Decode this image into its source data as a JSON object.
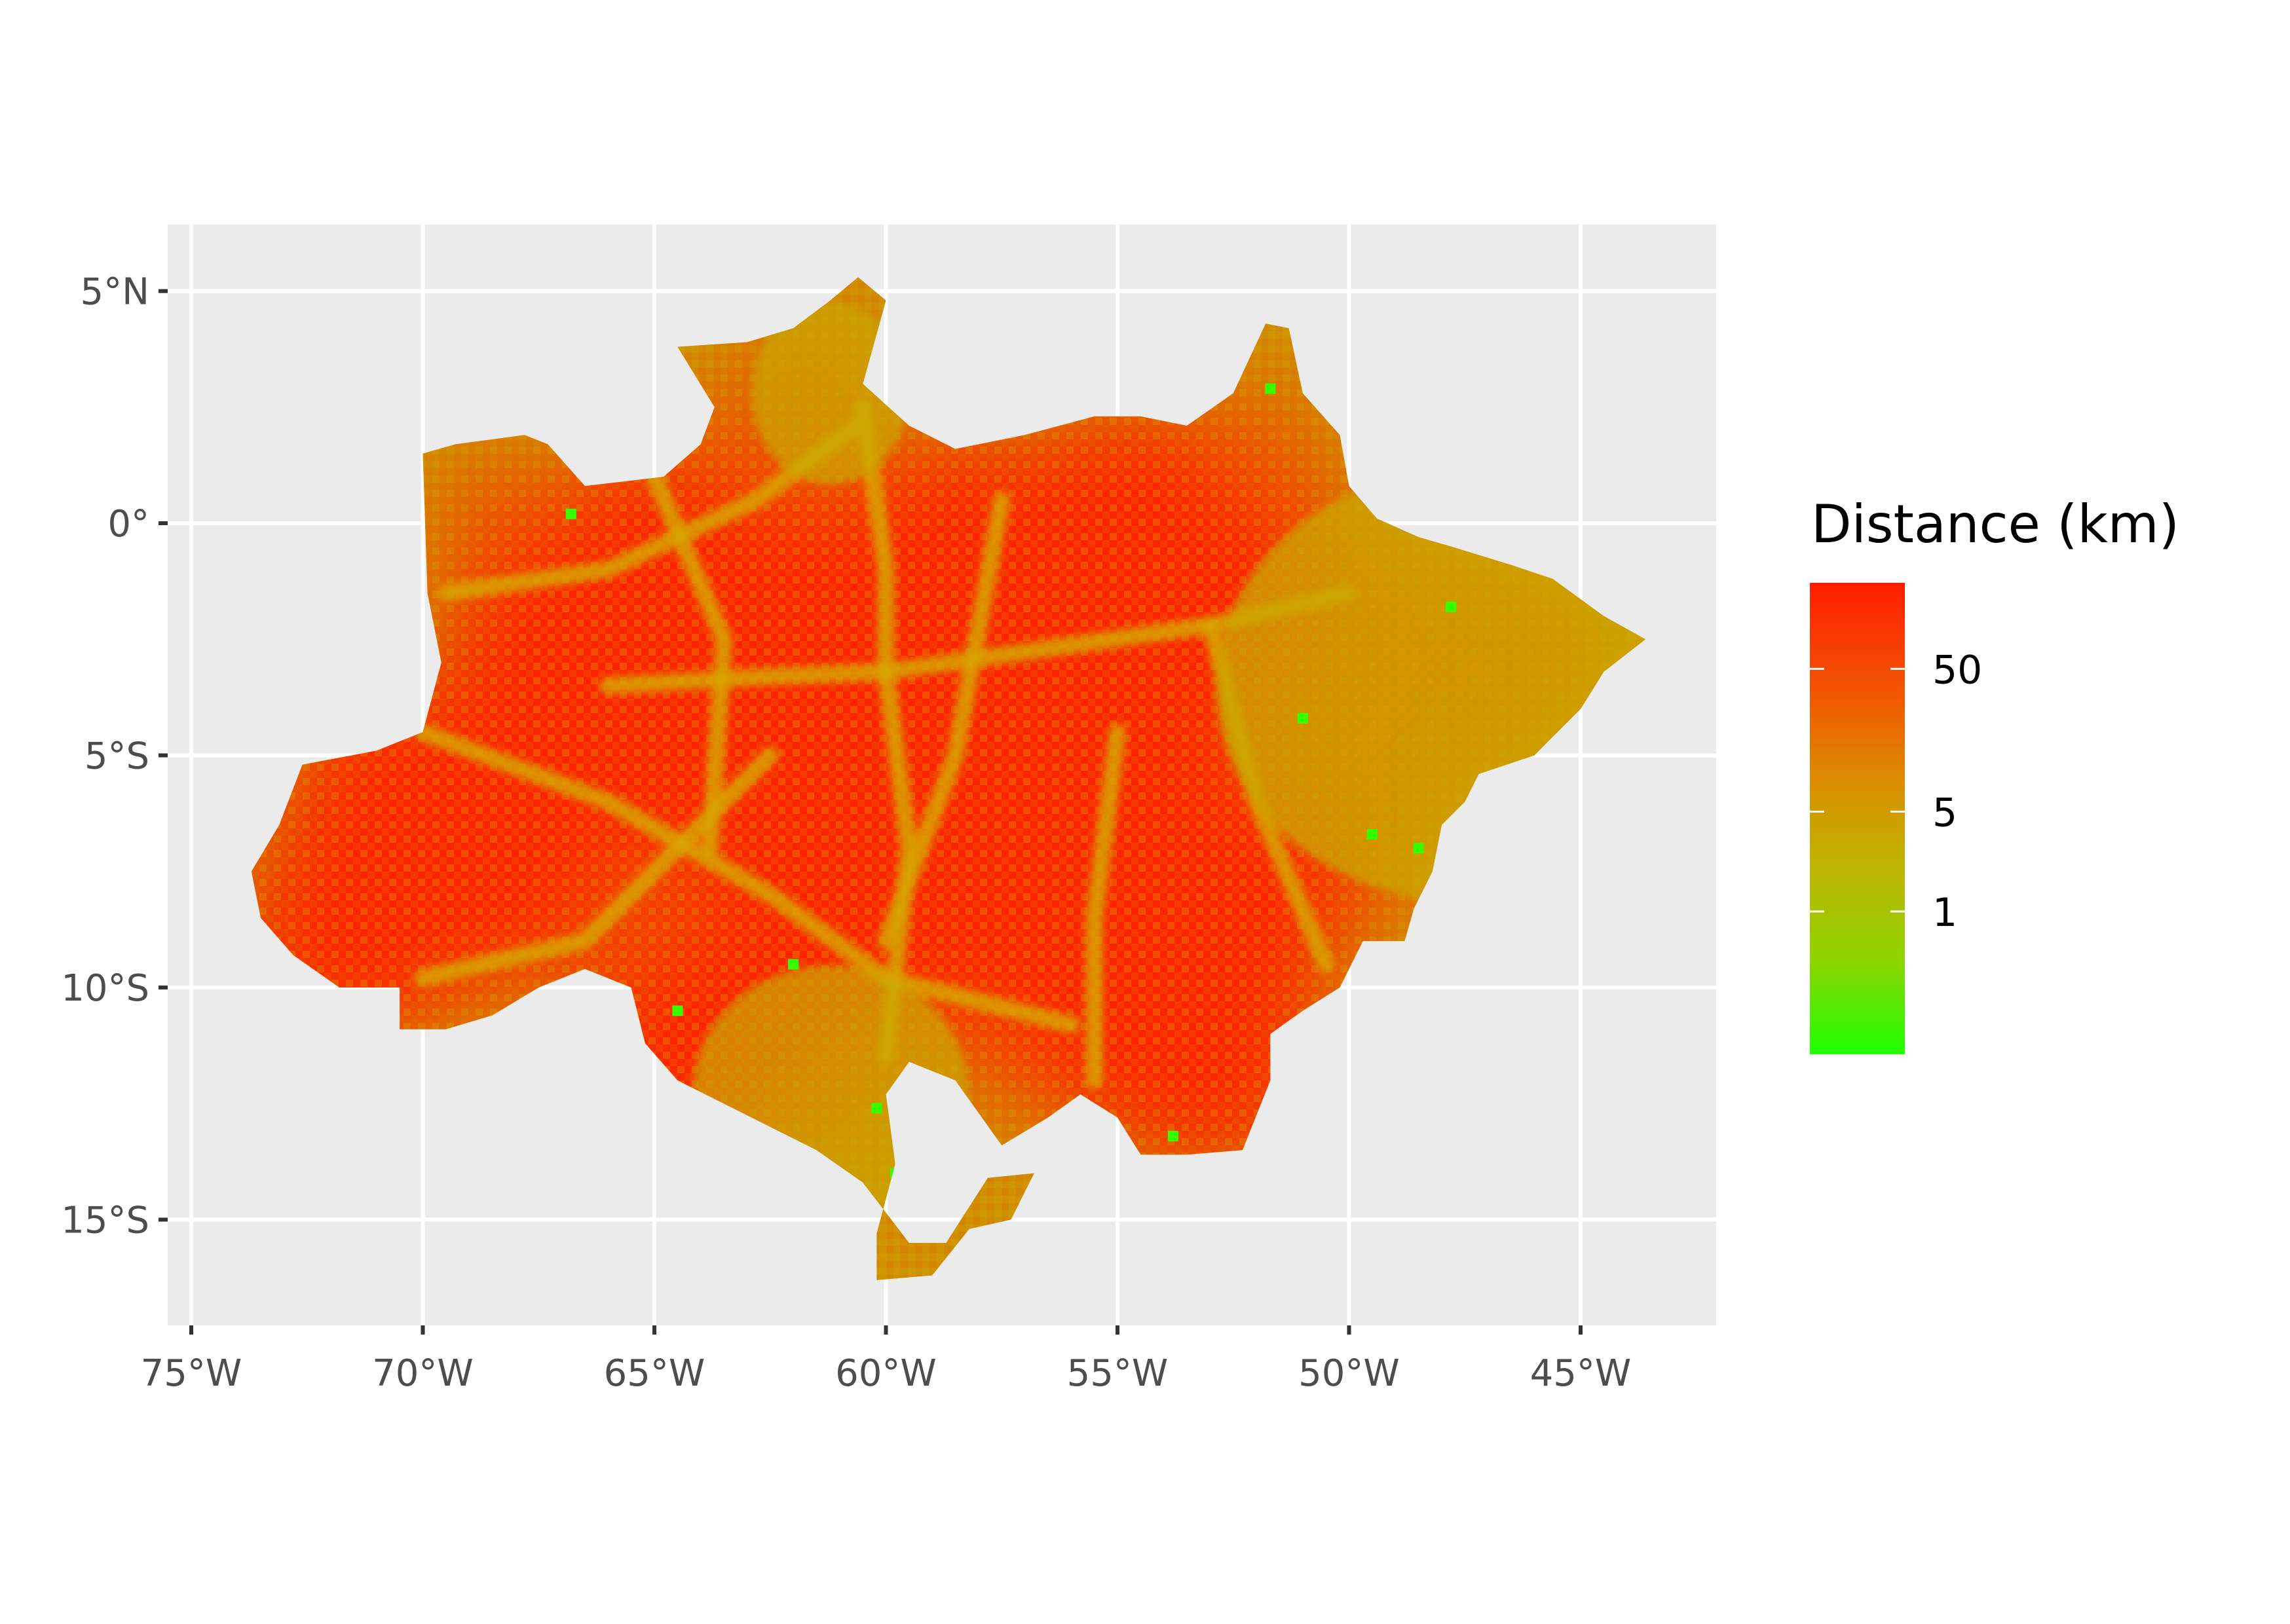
{
  "map": {
    "type": "raster",
    "x_axis": {
      "ticks": [
        -75,
        -70,
        -65,
        -60,
        -55,
        -50,
        -45
      ],
      "tick_labels": [
        "75°W",
        "70°W",
        "65°W",
        "60°W",
        "55°W",
        "50°W",
        "45°W"
      ],
      "range": [
        -75.5,
        -42.0
      ]
    },
    "y_axis": {
      "ticks": [
        5,
        0,
        -5,
        -10,
        -15
      ],
      "tick_labels": [
        "5°N",
        "0°",
        "5°S",
        "10°S",
        "15°S"
      ],
      "range": [
        -17.4,
        6.4
      ]
    },
    "grid": true,
    "region_outline_lonlat": [
      [
        -73.7,
        -7.5
      ],
      [
        -73.1,
        -6.5
      ],
      [
        -72.6,
        -5.2
      ],
      [
        -71.0,
        -4.9
      ],
      [
        -70.0,
        -4.5
      ],
      [
        -69.6,
        -3.0
      ],
      [
        -69.9,
        -1.5
      ],
      [
        -70.0,
        1.5
      ],
      [
        -69.3,
        1.7
      ],
      [
        -67.8,
        1.9
      ],
      [
        -67.3,
        1.7
      ],
      [
        -66.5,
        0.8
      ],
      [
        -64.8,
        1.0
      ],
      [
        -64.0,
        1.7
      ],
      [
        -63.7,
        2.5
      ],
      [
        -64.5,
        3.8
      ],
      [
        -63.0,
        3.9
      ],
      [
        -62.0,
        4.2
      ],
      [
        -61.2,
        4.8
      ],
      [
        -60.6,
        5.3
      ],
      [
        -60.0,
        4.8
      ],
      [
        -60.5,
        3.0
      ],
      [
        -59.5,
        2.1
      ],
      [
        -58.5,
        1.6
      ],
      [
        -57.0,
        1.9
      ],
      [
        -55.5,
        2.3
      ],
      [
        -54.5,
        2.3
      ],
      [
        -53.5,
        2.1
      ],
      [
        -52.5,
        2.8
      ],
      [
        -51.8,
        4.3
      ],
      [
        -51.3,
        4.2
      ],
      [
        -51.0,
        2.8
      ],
      [
        -50.2,
        1.9
      ],
      [
        -50.0,
        0.8
      ],
      [
        -49.4,
        0.1
      ],
      [
        -48.5,
        -0.3
      ],
      [
        -47.8,
        -0.5
      ],
      [
        -46.5,
        -0.9
      ],
      [
        -45.6,
        -1.2
      ],
      [
        -44.5,
        -2.0
      ],
      [
        -43.6,
        -2.5
      ],
      [
        -44.5,
        -3.2
      ],
      [
        -45.0,
        -4.0
      ],
      [
        -46.0,
        -5.0
      ],
      [
        -47.2,
        -5.4
      ],
      [
        -47.5,
        -6.0
      ],
      [
        -48.0,
        -6.5
      ],
      [
        -48.2,
        -7.5
      ],
      [
        -48.6,
        -8.3
      ],
      [
        -48.8,
        -9.0
      ],
      [
        -49.7,
        -9.0
      ],
      [
        -50.2,
        -10.0
      ],
      [
        -51.0,
        -10.5
      ],
      [
        -51.7,
        -11.0
      ],
      [
        -51.7,
        -12.0
      ],
      [
        -52.1,
        -13.0
      ],
      [
        -52.3,
        -13.5
      ],
      [
        -53.5,
        -13.6
      ],
      [
        -54.5,
        -13.6
      ],
      [
        -55.0,
        -12.8
      ],
      [
        -55.8,
        -12.3
      ],
      [
        -56.5,
        -12.8
      ],
      [
        -57.5,
        -13.4
      ],
      [
        -58.5,
        -12.0
      ],
      [
        -59.5,
        -11.6
      ],
      [
        -60.0,
        -12.3
      ],
      [
        -59.8,
        -13.8
      ],
      [
        -60.2,
        -15.3
      ],
      [
        -60.2,
        -16.3
      ],
      [
        -59.0,
        -16.2
      ],
      [
        -58.2,
        -15.2
      ],
      [
        -57.3,
        -15.0
      ],
      [
        -56.8,
        -14.0
      ],
      [
        -57.8,
        -14.1
      ],
      [
        -58.7,
        -15.5
      ],
      [
        -59.5,
        -15.5
      ],
      [
        -60.5,
        -14.2
      ],
      [
        -61.5,
        -13.5
      ],
      [
        -62.5,
        -13.0
      ],
      [
        -63.5,
        -12.5
      ],
      [
        -64.5,
        -12.0
      ],
      [
        -65.2,
        -11.2
      ],
      [
        -65.5,
        -10.0
      ],
      [
        -66.5,
        -9.6
      ],
      [
        -67.5,
        -10.0
      ],
      [
        -68.5,
        -10.6
      ],
      [
        -69.5,
        -10.9
      ],
      [
        -70.5,
        -10.9
      ],
      [
        -70.5,
        -10.0
      ],
      [
        -71.8,
        -10.0
      ],
      [
        -72.8,
        -9.3
      ],
      [
        -73.5,
        -8.5
      ]
    ],
    "hotspots_lonlat": [
      [
        -63.0,
        -2.5
      ],
      [
        -64.8,
        -0.8
      ],
      [
        -58.3,
        -0.6
      ],
      [
        -54.7,
        0.0
      ],
      [
        -52.8,
        -1.8
      ],
      [
        -58.5,
        -4.5
      ],
      [
        -55.0,
        -4.8
      ],
      [
        -70.5,
        -6.0
      ],
      [
        -68.5,
        -7.5
      ],
      [
        -66.0,
        -4.8
      ],
      [
        -62.5,
        -6.0
      ],
      [
        -58.5,
        -8.3
      ],
      [
        -54.2,
        -7.5
      ],
      [
        -52.4,
        -8.0
      ],
      [
        -71.5,
        -8.7
      ],
      [
        -67.0,
        -2.5
      ],
      [
        -61.0,
        -8.5
      ],
      [
        -64.0,
        -11.2
      ],
      [
        -55.0,
        -10.5
      ],
      [
        -53.2,
        -11.5
      ],
      [
        -62.0,
        -2.0
      ]
    ],
    "road_lines_lonlat": [
      [
        [
          -69.5,
          -1.5
        ],
        [
          -66.0,
          -1.0
        ],
        [
          -62.8,
          0.5
        ],
        [
          -60.5,
          2.2
        ]
      ],
      [
        [
          -66.0,
          -3.5
        ],
        [
          -62.5,
          -3.3
        ],
        [
          -60.0,
          -3.2
        ],
        [
          -56.5,
          -2.7
        ],
        [
          -53.0,
          -2.2
        ],
        [
          -50.0,
          -1.5
        ]
      ],
      [
        [
          -60.0,
          -3.2
        ],
        [
          -59.5,
          -7.0
        ],
        [
          -60.0,
          -11.5
        ]
      ],
      [
        [
          -70.0,
          -4.5
        ],
        [
          -66.0,
          -6.0
        ],
        [
          -62.5,
          -8.0
        ],
        [
          -60.0,
          -9.8
        ],
        [
          -56.0,
          -10.8
        ]
      ],
      [
        [
          -57.5,
          0.5
        ],
        [
          -58.5,
          -5.0
        ],
        [
          -60.0,
          -9.0
        ]
      ],
      [
        [
          -55.0,
          -4.5
        ],
        [
          -55.5,
          -8.5
        ],
        [
          -55.5,
          -12.0
        ]
      ],
      [
        [
          -62.5,
          -5.0
        ],
        [
          -66.5,
          -9.0
        ],
        [
          -70.0,
          -9.8
        ]
      ],
      [
        [
          -53.0,
          -2.2
        ],
        [
          -52.0,
          -6.0
        ],
        [
          -50.5,
          -9.5
        ]
      ],
      [
        [
          -65.0,
          1.0
        ],
        [
          -63.5,
          -2.5
        ],
        [
          -63.8,
          -7.0
        ]
      ],
      [
        [
          -60.5,
          2.5
        ],
        [
          -60.0,
          -1.0
        ],
        [
          -60.0,
          -3.2
        ]
      ]
    ],
    "green_cells_lonlat": [
      [
        -66.8,
        0.2
      ],
      [
        -47.8,
        -1.8
      ],
      [
        -60.2,
        -12.6
      ],
      [
        -59.8,
        -14.0
      ],
      [
        -53.8,
        -13.2
      ],
      [
        -49.5,
        -6.7
      ],
      [
        -51.7,
        2.9
      ],
      [
        -64.5,
        -10.5
      ],
      [
        -62.0,
        -9.5
      ],
      [
        -48.5,
        -7.0
      ],
      [
        -51.0,
        -4.2
      ]
    ]
  },
  "legend": {
    "title": "Distance (km)",
    "break_labels": [
      "50",
      "5",
      "1"
    ],
    "break_values": [
      50,
      5,
      1
    ],
    "scale": "log",
    "colors": {
      "high": "#ff1e00",
      "mid": "#d98a00",
      "low": "#1eff00"
    }
  },
  "colors": {
    "panel_background": "#ebebeb",
    "grid": "#ffffff",
    "tick": "#333333",
    "tick_text": "#4d4d4d"
  }
}
